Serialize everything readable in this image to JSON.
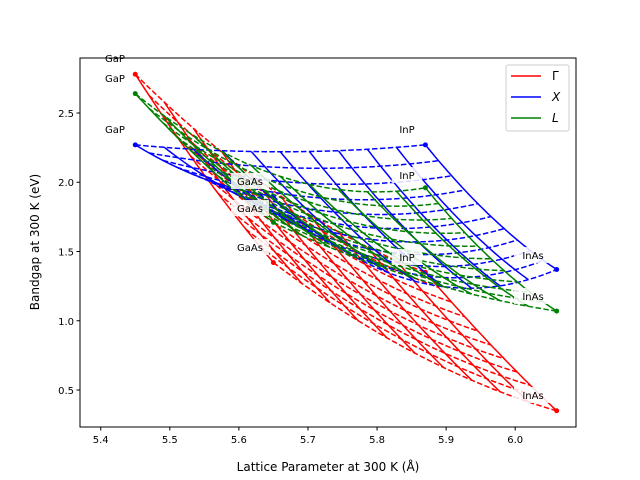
{
  "chart_data": {
    "type": "line",
    "title": "",
    "xlabel": "Lattice Parameter at 300 K (Å)",
    "ylabel": "Bandgap at 300 K (eV)",
    "xlim": [
      5.37,
      6.088
    ],
    "ylim": [
      0.233,
      2.897
    ],
    "xticks": [
      "5.4",
      "5.5",
      "5.6",
      "5.7",
      "5.8",
      "5.9",
      "6.0"
    ],
    "yticks": [
      "0.5",
      "1.0",
      "1.5",
      "2.0",
      "2.5"
    ],
    "grid": false,
    "legend": {
      "placement": "top-right",
      "entries": [
        "Γ",
        "X",
        "L"
      ]
    },
    "composition_step": 0.1,
    "binaries": {
      "GaP": {
        "lattice": 5.45,
        "gamma": 2.78,
        "X": 2.27,
        "L": 2.64
      },
      "GaAs": {
        "lattice": 5.65,
        "gamma": 1.42,
        "X": 1.9,
        "L": 1.71
      },
      "InP": {
        "lattice": 5.87,
        "gamma": 1.35,
        "X": 2.27,
        "L": 1.96
      },
      "InAs": {
        "lattice": 6.06,
        "gamma": 0.35,
        "X": 1.37,
        "L": 1.07
      }
    },
    "bowing": {
      "gamma": {
        "GaInP": 0.65,
        "GaInAs": 0.477,
        "GaAsP": 0.19,
        "InAsP": 0.1
      },
      "X": {
        "GaInP": 0.2,
        "GaInAs": 1.4,
        "GaAsP": 0.24,
        "InAsP": 0.27
      },
      "L": {
        "GaInP": 1.03,
        "GaInAs": 0.33,
        "GaAsP": 0.16,
        "InAsP": 0.27
      }
    },
    "series": [
      {
        "name": "Γ",
        "key": "gamma",
        "color": "#ff0000"
      },
      {
        "name": "X",
        "key": "X",
        "color": "#0000ff"
      },
      {
        "name": "L",
        "key": "L",
        "color": "#008000"
      }
    ],
    "labels": {
      "GaP": "GaP",
      "GaAs": "GaAs",
      "InP": "InP",
      "InAs": "InAs"
    }
  }
}
